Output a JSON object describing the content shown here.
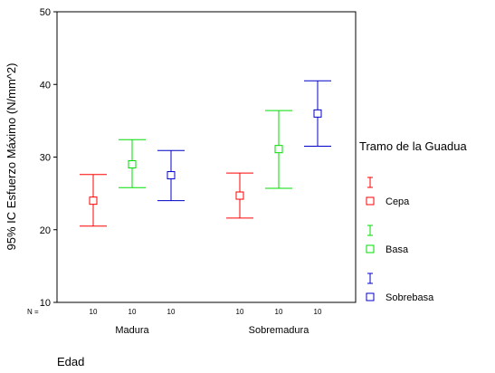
{
  "chart_data": {
    "type": "errorbar",
    "title": "",
    "xlabel": "Edad",
    "ylabel": "95% IC Esfuerzo Máximo (N/mm^2)",
    "ylim": [
      10,
      50
    ],
    "yticks": [
      "10",
      "20",
      "30",
      "40",
      "50"
    ],
    "grid": false,
    "legend_title": "Tramo de la Guadua",
    "legend_position": "right",
    "n_label": "N =",
    "categories": [
      "Madura",
      "Sobremadura"
    ],
    "series": [
      {
        "name": "Cepa",
        "color": "#ff0000",
        "points": [
          {
            "category": "Madura",
            "mean": 24.0,
            "low": 20.5,
            "high": 27.6,
            "n": "10"
          },
          {
            "category": "Sobremadura",
            "mean": 24.7,
            "low": 21.6,
            "high": 27.8,
            "n": "10"
          }
        ]
      },
      {
        "name": "Basa",
        "color": "#00dd00",
        "points": [
          {
            "category": "Madura",
            "mean": 29.0,
            "low": 25.8,
            "high": 32.4,
            "n": "10"
          },
          {
            "category": "Sobremadura",
            "mean": 31.1,
            "low": 25.7,
            "high": 36.4,
            "n": "10"
          }
        ]
      },
      {
        "name": "Sobrebasa",
        "color": "#0000cc",
        "points": [
          {
            "category": "Madura",
            "mean": 27.5,
            "low": 24.0,
            "high": 30.9,
            "n": "10"
          },
          {
            "category": "Sobremadura",
            "mean": 36.0,
            "low": 31.5,
            "high": 40.5,
            "n": "10"
          }
        ]
      }
    ]
  }
}
